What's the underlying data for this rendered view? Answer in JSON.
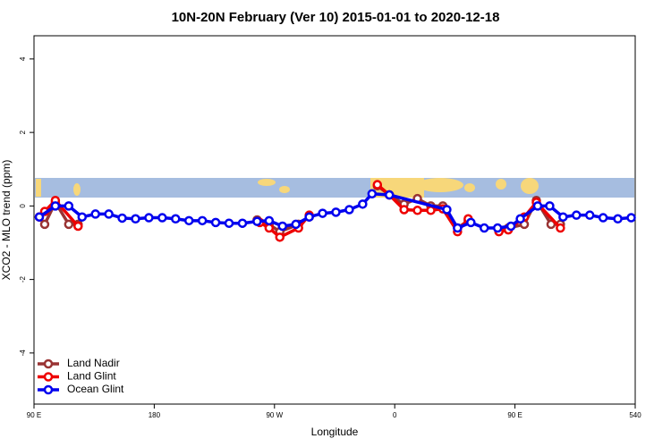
{
  "chart_data": {
    "type": "line",
    "title": "10N-20N February (Ver 10)   2015-01-01 to 2020-12-18",
    "x_label": "Longitude",
    "y_label": "XCO2 - MLO trend (ppm)",
    "xlim": [
      90,
      540
    ],
    "xticks": [
      {
        "value": 90,
        "label": "90 E"
      },
      180,
      {
        "value": 270,
        "label": "90 W"
      },
      {
        "value": 360,
        "label": "0"
      },
      {
        "value": 450,
        "label": "90 E"
      },
      540
    ],
    "ylim": [
      -5.39,
      4.63
    ],
    "yticks": [
      -4,
      -2,
      0,
      2,
      4
    ],
    "legend": "bottom-left",
    "series": [
      {
        "name": "Land Nadir",
        "color": "#993333",
        "x": [
          94,
          98,
          106,
          116,
          123,
          190,
          257,
          266,
          274,
          288,
          296,
          320,
          347,
          356,
          367,
          377,
          387,
          396,
          407,
          415,
          425,
          438,
          445,
          457,
          466,
          477,
          484
        ],
        "values": [
          -0.3,
          -0.5,
          0.1,
          -0.5,
          -0.5,
          null,
          -0.38,
          -0.5,
          -0.7,
          -0.5,
          -0.3,
          null,
          0.55,
          0.3,
          0.05,
          0.2,
          0,
          0,
          -0.6,
          -0.4,
          null,
          -0.65,
          -0.6,
          -0.5,
          0.15,
          -0.5,
          -0.5
        ]
      },
      {
        "name": "Land Glint",
        "color": "#ee0000",
        "x": [
          94,
          98,
          106,
          123,
          190,
          259,
          266,
          274,
          288,
          296,
          320,
          347,
          356,
          367,
          377,
          387,
          396,
          407,
          415,
          425,
          438,
          445,
          457,
          466,
          484
        ],
        "values": [
          -0.3,
          -0.15,
          0.15,
          -0.55,
          null,
          -0.45,
          -0.6,
          -0.85,
          -0.6,
          -0.25,
          null,
          0.58,
          0.3,
          -0.1,
          -0.12,
          -0.12,
          -0.08,
          -0.7,
          -0.35,
          null,
          -0.7,
          -0.65,
          -0.3,
          0.1,
          -0.6
        ]
      },
      {
        "name": "Ocean Glint",
        "color": "#0000ee",
        "x": [
          94,
          106,
          116,
          126,
          136,
          146,
          156,
          166,
          176,
          186,
          196,
          206,
          216,
          226,
          236,
          246,
          257,
          266,
          276,
          286,
          296,
          306,
          316,
          326,
          336,
          343,
          356,
          399,
          407,
          417,
          427,
          437,
          447,
          454,
          467,
          476,
          486,
          496,
          506,
          516,
          527,
          537
        ],
        "values": [
          -0.3,
          0,
          0,
          -0.3,
          -0.22,
          -0.22,
          -0.33,
          -0.35,
          -0.32,
          -0.32,
          -0.35,
          -0.4,
          -0.4,
          -0.45,
          -0.47,
          -0.47,
          -0.42,
          -0.4,
          -0.55,
          -0.5,
          -0.3,
          -0.2,
          -0.17,
          -0.1,
          0.05,
          0.33,
          0.3,
          -0.1,
          -0.6,
          -0.45,
          -0.6,
          -0.6,
          -0.55,
          -0.35,
          0,
          0,
          -0.3,
          -0.25,
          -0.25,
          -0.32,
          -0.35,
          -0.32
        ]
      }
    ]
  }
}
